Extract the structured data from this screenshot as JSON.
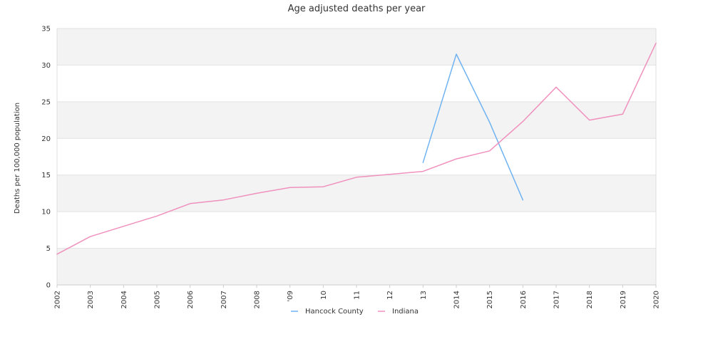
{
  "chart_data": {
    "type": "line",
    "title": "Age adjusted deaths per year",
    "xlabel": "",
    "ylabel": "Deaths per 100,000 population",
    "x": [
      "2002",
      "2003",
      "2004",
      "2005",
      "2006",
      "2007",
      "2008",
      "2009",
      "2010",
      "2011",
      "2012",
      "2013",
      "2014",
      "2015",
      "2016",
      "2017",
      "2018",
      "2019",
      "2020"
    ],
    "x_tick_labels": [
      "2002",
      "2003",
      "2004",
      "2005",
      "2006",
      "2007",
      "2008",
      "'09",
      "10",
      "11",
      "12",
      "13",
      "2014",
      "2015",
      "2016",
      "2017",
      "2018",
      "2019",
      "2020"
    ],
    "ylim": [
      0,
      35
    ],
    "yticks": [
      0,
      5,
      10,
      15,
      20,
      25,
      30,
      35
    ],
    "grid": "alternating horizontal bands",
    "legend_position": "bottom-center",
    "series": [
      {
        "name": "Hancock County",
        "color": "#6fb3f2",
        "values": [
          null,
          null,
          null,
          null,
          null,
          null,
          null,
          null,
          null,
          null,
          null,
          16.7,
          31.5,
          22.2,
          11.6,
          null,
          null,
          null,
          null
        ]
      },
      {
        "name": "Indiana",
        "color": "#f090bd",
        "values": [
          4.2,
          6.6,
          8.0,
          9.4,
          11.1,
          11.6,
          12.5,
          13.3,
          13.4,
          14.7,
          15.1,
          15.5,
          17.2,
          18.3,
          22.3,
          27.0,
          22.5,
          23.3,
          33.0
        ]
      }
    ]
  }
}
